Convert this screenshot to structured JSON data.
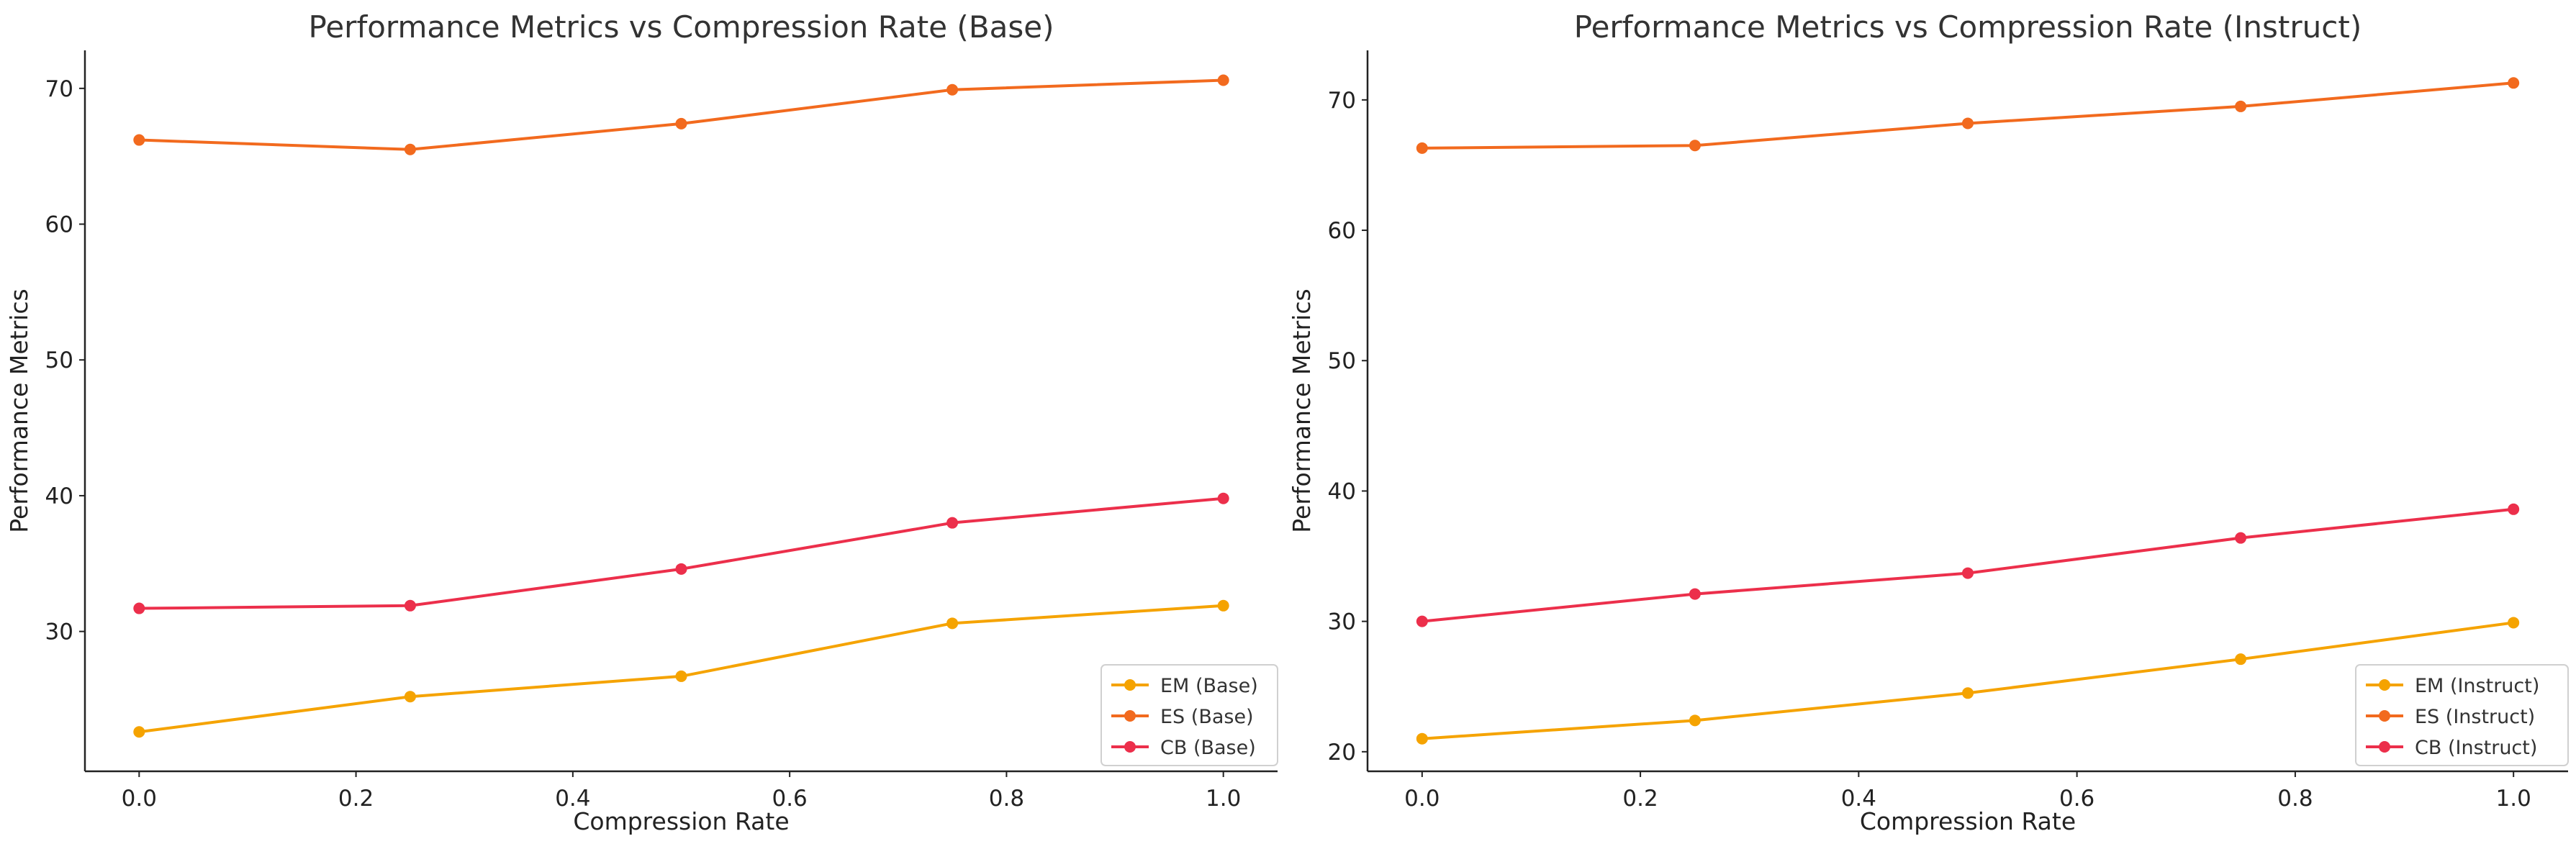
{
  "chart_data": [
    {
      "type": "line",
      "title": "Performance Metrics vs Compression Rate (Base)",
      "xlabel": "Compression Rate",
      "ylabel": "Performance Metrics",
      "x": [
        0.0,
        0.25,
        0.5,
        0.75,
        1.0
      ],
      "xlim": [
        -0.05,
        1.05
      ],
      "ylim": [
        19.7,
        72.8
      ],
      "xticks": [
        0.0,
        0.2,
        0.4,
        0.6,
        0.8,
        1.0
      ],
      "xtick_labels": [
        "0.0",
        "0.2",
        "0.4",
        "0.6",
        "0.8",
        "1.0"
      ],
      "yticks": [
        30,
        40,
        50,
        60,
        70
      ],
      "ytick_labels": [
        "30",
        "40",
        "50",
        "60",
        "70"
      ],
      "grid": false,
      "legend_position": "bottom-right",
      "series": [
        {
          "name": "EM (Base)",
          "color": "#f5a300",
          "values": [
            22.6,
            25.2,
            26.7,
            30.6,
            31.9
          ]
        },
        {
          "name": "ES (Base)",
          "color": "#f26a1e",
          "values": [
            66.2,
            65.5,
            67.4,
            69.9,
            70.6
          ]
        },
        {
          "name": "CB (Base)",
          "color": "#ec2f4b",
          "values": [
            31.7,
            31.9,
            34.6,
            38.0,
            39.8
          ]
        }
      ]
    },
    {
      "type": "line",
      "title": "Performance Metrics vs Compression Rate (Instruct)",
      "xlabel": "Compression Rate",
      "ylabel": "Performance Metrics",
      "x": [
        0.0,
        0.25,
        0.5,
        0.75,
        1.0
      ],
      "xlim": [
        -0.05,
        1.05
      ],
      "ylim": [
        18.5,
        73.8
      ],
      "xticks": [
        0.0,
        0.2,
        0.4,
        0.6,
        0.8,
        1.0
      ],
      "xtick_labels": [
        "0.0",
        "0.2",
        "0.4",
        "0.6",
        "0.8",
        "1.0"
      ],
      "yticks": [
        20,
        30,
        40,
        50,
        60,
        70
      ],
      "ytick_labels": [
        "20",
        "30",
        "40",
        "50",
        "60",
        "70"
      ],
      "grid": false,
      "legend_position": "bottom-right",
      "series": [
        {
          "name": "EM (Instruct)",
          "color": "#f5a300",
          "values": [
            21.0,
            22.4,
            24.5,
            27.1,
            29.9
          ]
        },
        {
          "name": "ES (Instruct)",
          "color": "#f26a1e",
          "values": [
            66.3,
            66.5,
            68.2,
            69.5,
            71.3
          ]
        },
        {
          "name": "CB (Instruct)",
          "color": "#ec2f4b",
          "values": [
            30.0,
            32.1,
            33.7,
            36.4,
            38.6
          ]
        }
      ]
    }
  ]
}
